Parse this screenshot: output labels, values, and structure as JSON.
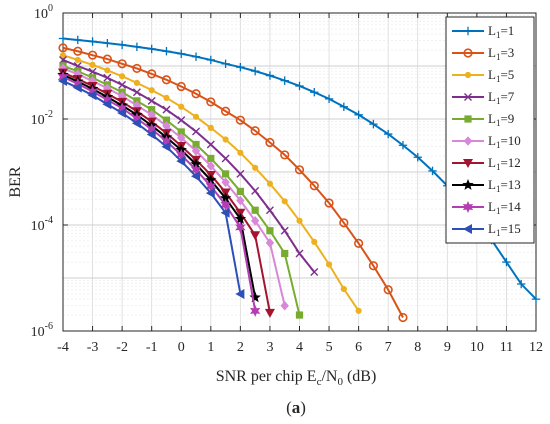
{
  "chart_data": {
    "type": "line",
    "xlabel": "SNR per chip  E",
    "xlabel_sub1": "c",
    "xlabel_mid": "/N",
    "xlabel_sub2": "0",
    "xlabel_tail": " (dB)",
    "ylabel": "BER",
    "caption_open": "(",
    "caption_letter": "a",
    "caption_close": ")",
    "xlim": [
      -4,
      12
    ],
    "ylim": [
      1e-06,
      1
    ],
    "yscale": "log",
    "grid": true,
    "legend_placement": "top-right",
    "x_ticks": [
      "-4",
      "-3",
      "-2",
      "-1",
      "0",
      "1",
      "2",
      "3",
      "4",
      "5",
      "6",
      "7",
      "8",
      "9",
      "10",
      "11",
      "12"
    ],
    "y_ticks": [
      {
        "base": "10",
        "exp": "0"
      },
      {
        "base": "10",
        "exp": "-2"
      },
      {
        "base": "10",
        "exp": "-4"
      },
      {
        "base": "10",
        "exp": "-6"
      }
    ],
    "series": [
      {
        "name_main": "L",
        "name_sub": "1",
        "name_rest": "=1",
        "color": "#0072BD",
        "marker": "plus",
        "x": [
          -4,
          -3.5,
          -3,
          -2.5,
          -2,
          -1.5,
          -1,
          -0.5,
          0,
          0.5,
          1,
          1.5,
          2,
          2.5,
          3,
          3.5,
          4,
          4.5,
          5,
          5.5,
          6,
          6.5,
          7,
          7.5,
          8,
          8.5,
          9,
          9.5,
          10,
          10.5,
          11,
          11.5,
          12
        ],
        "y": [
          0.33,
          0.31,
          0.29,
          0.27,
          0.25,
          0.23,
          0.21,
          0.19,
          0.17,
          0.15,
          0.13,
          0.11,
          0.095,
          0.08,
          0.066,
          0.053,
          0.042,
          0.032,
          0.024,
          0.017,
          0.012,
          0.008,
          0.0052,
          0.0032,
          0.0019,
          0.00105,
          0.00055,
          0.00027,
          0.000125,
          5.2e-05,
          2e-05,
          7.7e-06,
          4e-06
        ]
      },
      {
        "name_main": "L",
        "name_sub": "1",
        "name_rest": "=3",
        "color": "#D95319",
        "marker": "circle",
        "x": [
          -4,
          -3.5,
          -3,
          -2.5,
          -2,
          -1.5,
          -1,
          -0.5,
          0,
          0.5,
          1,
          1.5,
          2,
          2.5,
          3,
          3.5,
          4,
          4.5,
          5,
          5.5,
          6,
          6.5,
          7,
          7.5
        ],
        "y": [
          0.22,
          0.19,
          0.16,
          0.135,
          0.11,
          0.09,
          0.071,
          0.055,
          0.041,
          0.03,
          0.021,
          0.014,
          0.0095,
          0.006,
          0.0036,
          0.0021,
          0.0011,
          0.00055,
          0.00026,
          0.00011,
          4.5e-05,
          1.7e-05,
          6e-06,
          1.8e-06
        ]
      },
      {
        "name_main": "L",
        "name_sub": "1",
        "name_rest": "=5",
        "color": "#EDB120",
        "marker": "dot",
        "x": [
          -4,
          -3.5,
          -3,
          -2.5,
          -2,
          -1.5,
          -1,
          -0.5,
          0,
          0.5,
          1,
          1.5,
          2,
          2.5,
          3,
          3.5,
          4,
          4.5,
          5,
          5.5,
          6
        ],
        "y": [
          0.16,
          0.13,
          0.105,
          0.083,
          0.064,
          0.048,
          0.035,
          0.025,
          0.017,
          0.011,
          0.0068,
          0.0041,
          0.0023,
          0.0012,
          0.0006,
          0.00028,
          0.00012,
          4.8e-05,
          1.8e-05,
          6.2e-06,
          2.4e-06
        ]
      },
      {
        "name_main": "L",
        "name_sub": "1",
        "name_rest": "=7",
        "color": "#7E2F8E",
        "marker": "x",
        "x": [
          -4,
          -3.5,
          -3,
          -2.5,
          -2,
          -1.5,
          -1,
          -0.5,
          0,
          0.5,
          1,
          1.5,
          2,
          2.5,
          3,
          3.5,
          4,
          4.5
        ],
        "y": [
          0.13,
          0.1,
          0.078,
          0.06,
          0.044,
          0.032,
          0.022,
          0.015,
          0.0095,
          0.0058,
          0.0033,
          0.0018,
          0.00092,
          0.00044,
          0.00019,
          7.8e-05,
          2.9e-05,
          1.3e-05
        ]
      },
      {
        "name_main": "L",
        "name_sub": "1",
        "name_rest": "=9",
        "color": "#77AC30",
        "marker": "square",
        "x": [
          -4,
          -3.5,
          -3,
          -2.5,
          -2,
          -1.5,
          -1,
          -0.5,
          0,
          0.5,
          1,
          1.5,
          2,
          2.5,
          3,
          3.5,
          4
        ],
        "y": [
          0.1,
          0.08,
          0.06,
          0.044,
          0.032,
          0.022,
          0.015,
          0.0095,
          0.0057,
          0.0033,
          0.0018,
          0.00092,
          0.00043,
          0.00019,
          7.8e-05,
          2.9e-05,
          2e-06
        ]
      },
      {
        "name_main": "L",
        "name_sub": "1",
        "name_rest": "=10",
        "color": "#D987D9",
        "marker": "diamond",
        "x": [
          -4,
          -3.5,
          -3,
          -2.5,
          -2,
          -1.5,
          -1,
          -0.5,
          0,
          0.5,
          1,
          1.5,
          2,
          2.5,
          3,
          3.5
        ],
        "y": [
          0.09,
          0.07,
          0.052,
          0.038,
          0.027,
          0.018,
          0.012,
          0.0074,
          0.0044,
          0.0025,
          0.0013,
          0.00064,
          0.00029,
          0.00012,
          4.6e-05,
          3e-06
        ]
      },
      {
        "name_main": "L",
        "name_sub": "1",
        "name_rest": "=12",
        "color": "#A2142F",
        "marker": "tri-down",
        "x": [
          -4,
          -3.5,
          -3,
          -2.5,
          -2,
          -1.5,
          -1,
          -0.5,
          0,
          0.5,
          1,
          1.5,
          2,
          2.5,
          3
        ],
        "y": [
          0.075,
          0.057,
          0.042,
          0.03,
          0.021,
          0.014,
          0.0089,
          0.0054,
          0.0031,
          0.0017,
          0.00088,
          0.00041,
          0.00017,
          6.4e-05,
          2.2e-06
        ]
      },
      {
        "name_main": "L",
        "name_sub": "1",
        "name_rest": "=13",
        "color": "#000000",
        "marker": "star",
        "x": [
          -4,
          -3.5,
          -3,
          -2.5,
          -2,
          -1.5,
          -1,
          -0.5,
          0,
          0.5,
          1,
          1.5,
          2,
          2.5
        ],
        "y": [
          0.068,
          0.051,
          0.037,
          0.026,
          0.018,
          0.012,
          0.0075,
          0.0045,
          0.0026,
          0.0014,
          0.0007,
          0.00032,
          0.00013,
          4.3e-06
        ]
      },
      {
        "name_main": "L",
        "name_sub": "1",
        "name_rest": "=14",
        "color": "#B43DB4",
        "marker": "star6",
        "x": [
          -4,
          -3.5,
          -3,
          -2.5,
          -2,
          -1.5,
          -1,
          -0.5,
          0,
          0.5,
          1,
          1.5,
          2,
          2.5
        ],
        "y": [
          0.062,
          0.046,
          0.033,
          0.023,
          0.016,
          0.0102,
          0.0064,
          0.0038,
          0.0021,
          0.0011,
          0.00054,
          0.00024,
          9e-05,
          2.4e-06
        ]
      },
      {
        "name_main": "L",
        "name_sub": "1",
        "name_rest": "=15",
        "color": "#2E4FB5",
        "marker": "tri-left",
        "x": [
          -4,
          -3.5,
          -3,
          -2.5,
          -2,
          -1.5,
          -1,
          -0.5,
          0,
          0.5,
          1,
          1.5,
          2
        ],
        "y": [
          0.052,
          0.039,
          0.028,
          0.019,
          0.013,
          0.0083,
          0.0051,
          0.003,
          0.0016,
          0.00083,
          0.0004,
          0.00017,
          5e-06
        ]
      }
    ]
  }
}
